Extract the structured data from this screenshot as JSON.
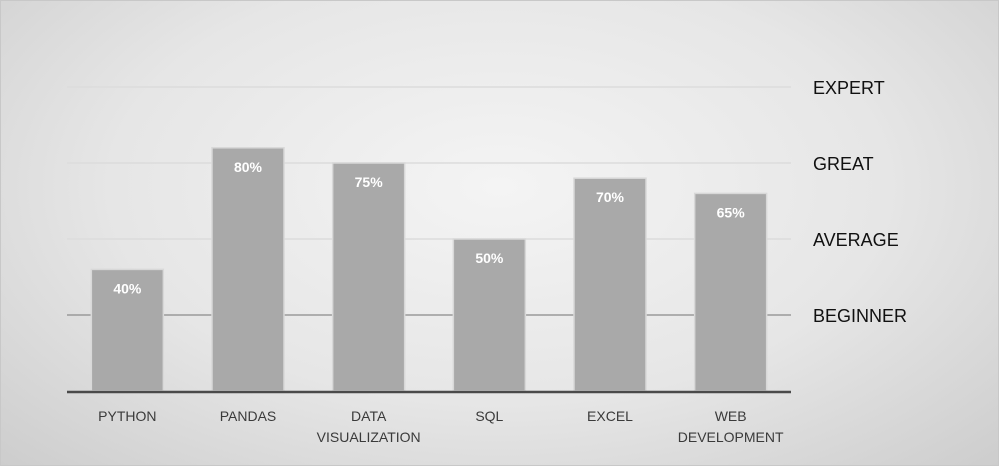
{
  "chart_data": {
    "type": "bar",
    "categories": [
      [
        "PYTHON"
      ],
      [
        "PANDAS"
      ],
      [
        "DATA",
        "VISUALIZATION"
      ],
      [
        "SQL"
      ],
      [
        "EXCEL"
      ],
      [
        "WEB",
        "DEVELOPMENT"
      ]
    ],
    "values": [
      40,
      80,
      75,
      50,
      70,
      65
    ],
    "data_labels": [
      "40%",
      "80%",
      "75%",
      "50%",
      "70%",
      "65%"
    ],
    "ylim": [
      0,
      100
    ],
    "level_lines": [
      {
        "label": "BEGINNER",
        "value": 25
      },
      {
        "label": "AVERAGE",
        "value": 50
      },
      {
        "label": "GREAT",
        "value": 75
      },
      {
        "label": "EXPERT",
        "value": 100
      }
    ],
    "grid": true,
    "legend": "none",
    "colors": {
      "bar": "#a9a9a9",
      "bar_edge": "#d8d8d8",
      "grid": "#dcdcdc",
      "grid_strong": "#9a9a9a",
      "axis": "#4a4a4a"
    }
  }
}
